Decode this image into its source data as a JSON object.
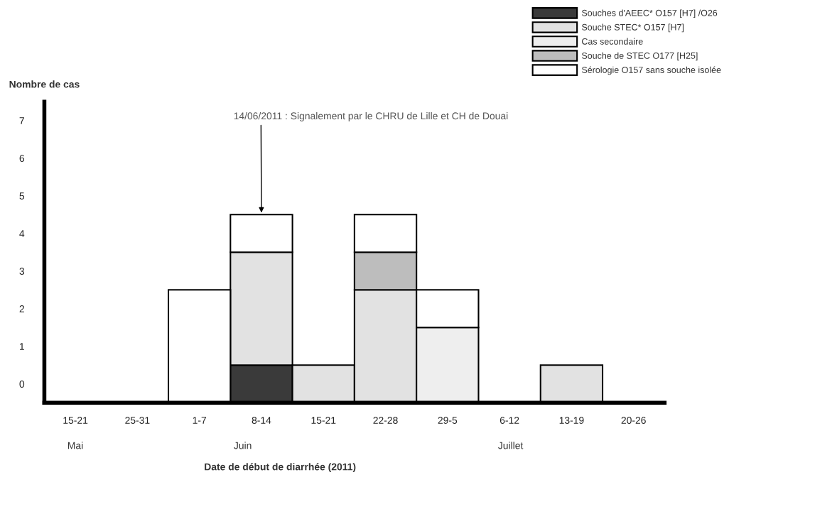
{
  "chart_data": {
    "type": "bar",
    "stacked": true,
    "categories": [
      "15-21",
      "25-31",
      "1-7",
      "8-14",
      "15-21",
      "22-28",
      "29-5",
      "6-12",
      "13-19",
      "20-26"
    ],
    "series": [
      {
        "name": "Souches d'AEEC* O157 [H7] /O26",
        "color": "#3a3a3a",
        "values": [
          0,
          0,
          0,
          1,
          0,
          0,
          0,
          0,
          0,
          0
        ]
      },
      {
        "name": "Souche STEC* O157 [H7]",
        "color": "#e2e2e2",
        "values": [
          0,
          0,
          0,
          3,
          1,
          3,
          0,
          0,
          1,
          0
        ]
      },
      {
        "name": "Cas secondaire",
        "color": "#eeeeee",
        "values": [
          0,
          0,
          0,
          0,
          0,
          0,
          2,
          0,
          0,
          0
        ]
      },
      {
        "name": "Souche de STEC O177 [H25]",
        "color": "#bdbdbd",
        "values": [
          0,
          0,
          0,
          0,
          0,
          1,
          0,
          0,
          0,
          0
        ]
      },
      {
        "name": "Sérologie O157 sans souche isolée",
        "color": "#ffffff",
        "values": [
          0,
          0,
          3,
          1,
          0,
          1,
          1,
          0,
          0,
          0
        ]
      }
    ],
    "ylabel": "Nombre de cas",
    "xlabel": "Date de début de diarrhée (2011)",
    "ylim": [
      0,
      8
    ],
    "yticks": [
      {
        "value": 0.5,
        "label": "0"
      },
      {
        "value": 1.5,
        "label": "1"
      },
      {
        "value": 2.5,
        "label": "2"
      },
      {
        "value": 3.5,
        "label": "3"
      },
      {
        "value": 4.5,
        "label": "4"
      },
      {
        "value": 5.5,
        "label": "5"
      },
      {
        "value": 6.5,
        "label": "6"
      },
      {
        "value": 7.5,
        "label": "7"
      }
    ],
    "annotations": [
      {
        "text": "14/06/2011 : Signalement par le CHRU de Lille et CH de Douai",
        "x": "8-14",
        "y": 5
      },
      "Mai",
      "Juin",
      "Juillet"
    ],
    "grid": false,
    "legend": "top right"
  }
}
